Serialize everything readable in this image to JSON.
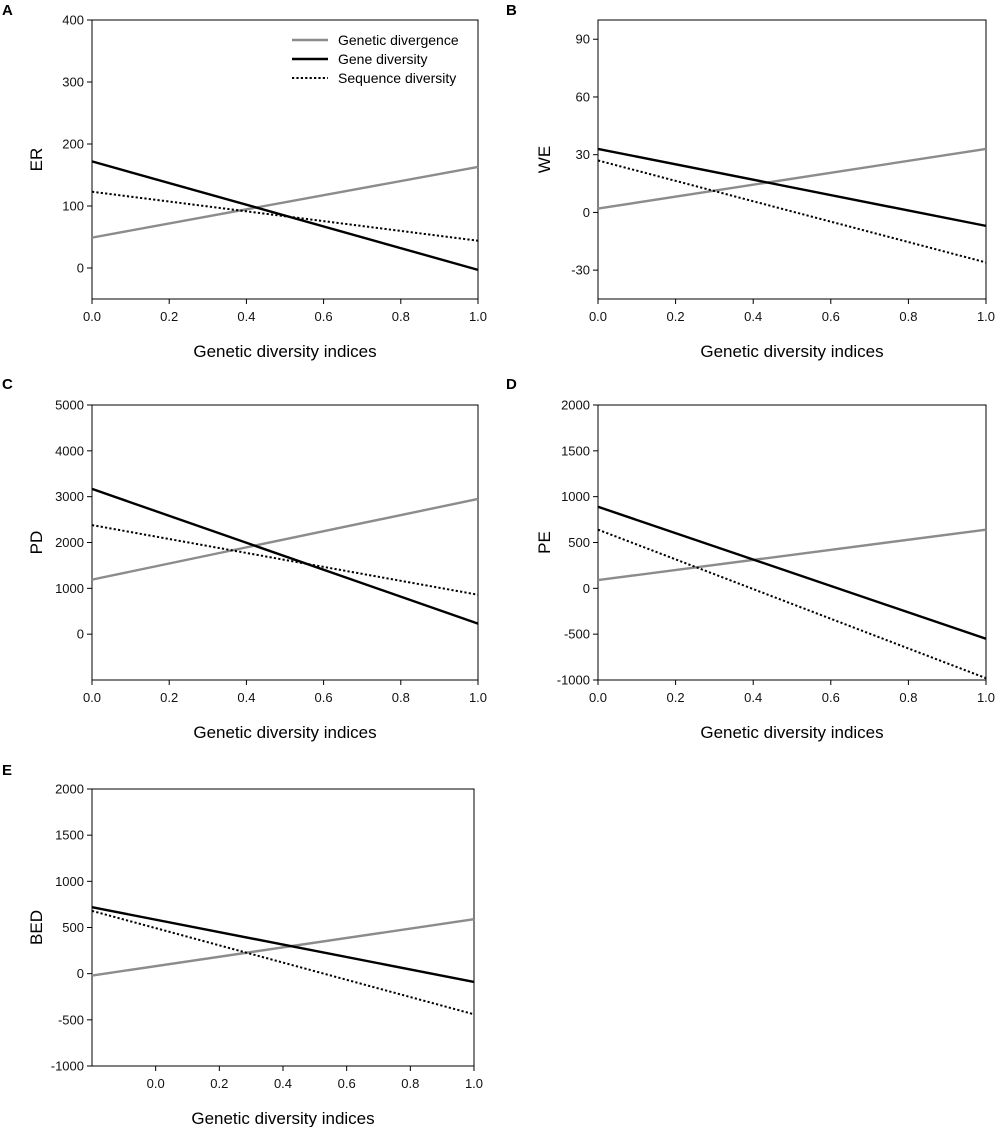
{
  "chart_data": [
    {
      "type": "line",
      "panel_label": "A",
      "xlabel": "Genetic diversity indices",
      "ylabel": "ER",
      "xlim": [
        0.0,
        1.0
      ],
      "ylim": [
        -50,
        400
      ],
      "xticks": [
        0.0,
        0.2,
        0.4,
        0.6,
        0.8,
        1.0
      ],
      "xtick_labels": [
        "0.0",
        "0.2",
        "0.4",
        "0.6",
        "0.8",
        "1.0"
      ],
      "yticks": [
        0,
        100,
        200,
        300,
        400
      ],
      "ytick_labels": [
        "0",
        "100",
        "200",
        "300",
        "400"
      ],
      "legend": {
        "placement": "top-right",
        "entries": [
          "Genetic divergence",
          "Gene diversity",
          "Sequence diversity"
        ]
      },
      "series": [
        {
          "name": "Genetic divergence",
          "style": "solid-gray",
          "x": [
            0.0,
            1.0
          ],
          "values": [
            49,
            163
          ]
        },
        {
          "name": "Gene diversity",
          "style": "solid-black",
          "x": [
            0.0,
            1.0
          ],
          "values": [
            172,
            -3
          ]
        },
        {
          "name": "Sequence diversity",
          "style": "dotted-black",
          "x": [
            0.0,
            1.0
          ],
          "values": [
            123,
            44
          ]
        }
      ]
    },
    {
      "type": "line",
      "panel_label": "B",
      "xlabel": "Genetic diversity indices",
      "ylabel": "WE",
      "xlim": [
        0.0,
        1.0
      ],
      "ylim": [
        -45,
        100
      ],
      "xticks": [
        0.0,
        0.2,
        0.4,
        0.6,
        0.8,
        1.0
      ],
      "xtick_labels": [
        "0.0",
        "0.2",
        "0.4",
        "0.6",
        "0.8",
        "1.0"
      ],
      "yticks": [
        -30,
        0,
        30,
        60,
        90
      ],
      "ytick_labels": [
        "-30",
        "0",
        "30",
        "60",
        "90"
      ],
      "series": [
        {
          "name": "Genetic divergence",
          "style": "solid-gray",
          "x": [
            0.0,
            1.0
          ],
          "values": [
            2,
            33
          ]
        },
        {
          "name": "Gene diversity",
          "style": "solid-black",
          "x": [
            0.0,
            1.0
          ],
          "values": [
            33,
            -7
          ]
        },
        {
          "name": "Sequence diversity",
          "style": "dotted-black",
          "x": [
            0.0,
            1.0
          ],
          "values": [
            27,
            -26
          ]
        }
      ]
    },
    {
      "type": "line",
      "panel_label": "C",
      "xlabel": "Genetic diversity indices",
      "ylabel": "PD",
      "xlim": [
        0.0,
        1.0
      ],
      "ylim": [
        -1000,
        5000
      ],
      "xticks": [
        0.0,
        0.2,
        0.4,
        0.6,
        0.8,
        1.0
      ],
      "xtick_labels": [
        "0.0",
        "0.2",
        "0.4",
        "0.6",
        "0.8",
        "1.0"
      ],
      "yticks": [
        0,
        1000,
        2000,
        3000,
        4000,
        5000
      ],
      "ytick_labels": [
        "0",
        "1000",
        "2000",
        "3000",
        "4000",
        "5000"
      ],
      "series": [
        {
          "name": "Genetic divergence",
          "style": "solid-gray",
          "x": [
            0.0,
            1.0
          ],
          "values": [
            1190,
            2950
          ]
        },
        {
          "name": "Gene diversity",
          "style": "solid-black",
          "x": [
            0.0,
            1.0
          ],
          "values": [
            3170,
            230
          ]
        },
        {
          "name": "Sequence diversity",
          "style": "dotted-black",
          "x": [
            0.0,
            1.0
          ],
          "values": [
            2380,
            860
          ]
        }
      ]
    },
    {
      "type": "line",
      "panel_label": "D",
      "xlabel": "Genetic diversity indices",
      "ylabel": "PE",
      "xlim": [
        0.0,
        1.0
      ],
      "ylim": [
        -1000,
        2000
      ],
      "xticks": [
        0.0,
        0.2,
        0.4,
        0.6,
        0.8,
        1.0
      ],
      "xtick_labels": [
        "0.0",
        "0.2",
        "0.4",
        "0.6",
        "0.8",
        "1.0"
      ],
      "yticks": [
        -1000,
        -500,
        0,
        500,
        1000,
        1500,
        2000
      ],
      "ytick_labels": [
        "-1000",
        "-500",
        "0",
        "500",
        "1000",
        "1500",
        "2000"
      ],
      "series": [
        {
          "name": "Genetic divergence",
          "style": "solid-gray",
          "x": [
            0.0,
            1.0
          ],
          "values": [
            90,
            640
          ]
        },
        {
          "name": "Gene diversity",
          "style": "solid-black",
          "x": [
            0.0,
            1.0
          ],
          "values": [
            890,
            -550
          ]
        },
        {
          "name": "Sequence diversity",
          "style": "dotted-black",
          "x": [
            0.0,
            1.0
          ],
          "values": [
            640,
            -980
          ]
        }
      ]
    },
    {
      "type": "line",
      "panel_label": "E",
      "xlabel": "Genetic diversity indices",
      "ylabel": "BED",
      "xlim": [
        -0.2,
        1.0
      ],
      "ylim": [
        -1000,
        2000
      ],
      "xticks": [
        0.0,
        0.2,
        0.4,
        0.6,
        0.8,
        1.0
      ],
      "xtick_labels": [
        "0.0",
        "0.2",
        "0.4",
        "0.6",
        "0.8",
        "1.0"
      ],
      "yticks": [
        -1000,
        -500,
        0,
        500,
        1000,
        1500,
        2000
      ],
      "ytick_labels": [
        "-1000",
        "-500",
        "0",
        "500",
        "1000",
        "1500",
        "2000"
      ],
      "series": [
        {
          "name": "Genetic divergence",
          "style": "solid-gray",
          "x": [
            -0.2,
            1.0
          ],
          "values": [
            -20,
            590
          ]
        },
        {
          "name": "Gene diversity",
          "style": "solid-black",
          "x": [
            -0.2,
            1.0
          ],
          "values": [
            720,
            -90
          ]
        },
        {
          "name": "Sequence diversity",
          "style": "dotted-black",
          "x": [
            -0.2,
            1.0
          ],
          "values": [
            680,
            -440
          ]
        }
      ]
    }
  ]
}
